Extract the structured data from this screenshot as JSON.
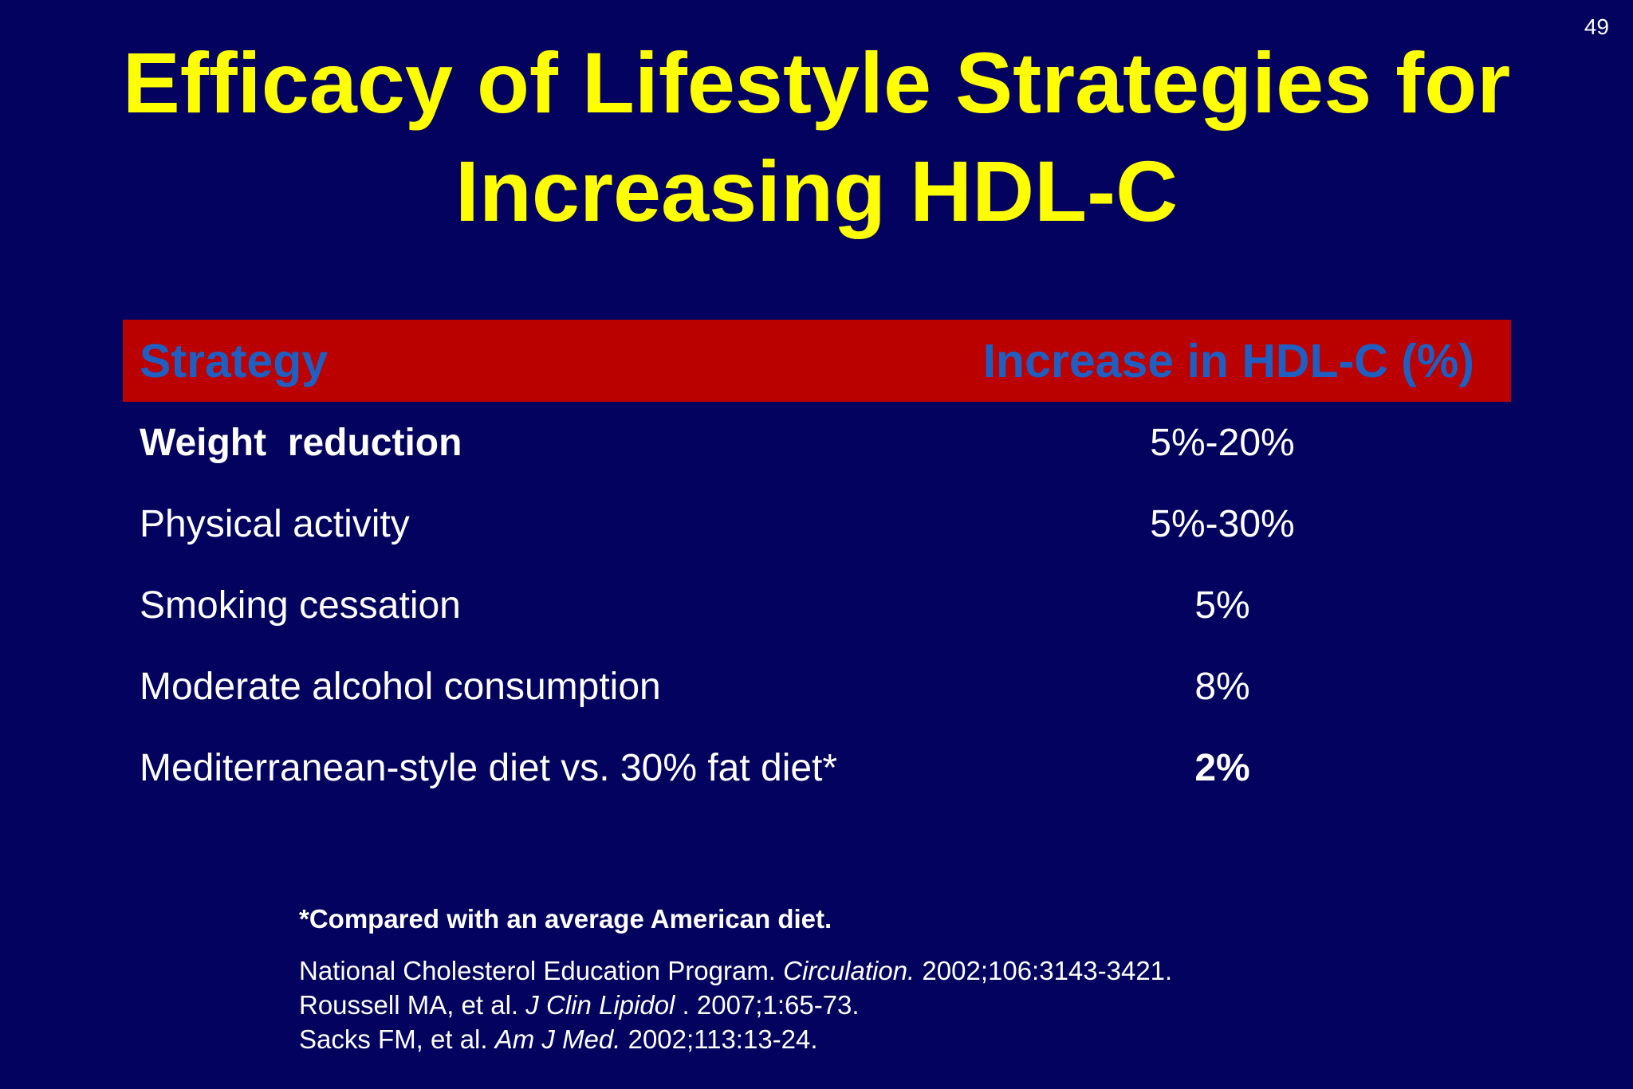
{
  "slide_number": "49",
  "title": {
    "line1": "Efficacy of Lifestyle Strategies for",
    "line2": "Increasing HDL-C"
  },
  "table": {
    "header": {
      "strategy": "Strategy",
      "increase": "Increase in HDL-C (%)"
    },
    "rows": [
      {
        "strategy": "Weight  reduction",
        "increase": "5%-20%"
      },
      {
        "strategy": "Physical activity",
        "increase": "5%-30%"
      },
      {
        "strategy": "Smoking cessation",
        "increase": "5%"
      },
      {
        "strategy": "Moderate alcohol consumption",
        "increase": "8%"
      },
      {
        "strategy": "Mediterranean-style diet vs. 30% fat diet*",
        "increase": "2%"
      }
    ]
  },
  "footnote": "*Compared with an average American diet.",
  "references": [
    {
      "pre": "National Cholesterol Education Program. ",
      "journal": "Circulation.",
      "post": " 2002;106:3143-3421."
    },
    {
      "pre": "Roussell MA, et al. ",
      "journal": "J Clin Lipidol",
      "post": " . 2007;1:65-73."
    },
    {
      "pre": "Sacks FM, et al. ",
      "journal": "Am J Med.",
      "post": " 2002;113:13-24."
    }
  ],
  "colors": {
    "background": "#03025e",
    "title": "#ffff00",
    "header_bg": "#bb0000",
    "header_text": "#1f5fc2",
    "body_text": "#ffffff"
  }
}
